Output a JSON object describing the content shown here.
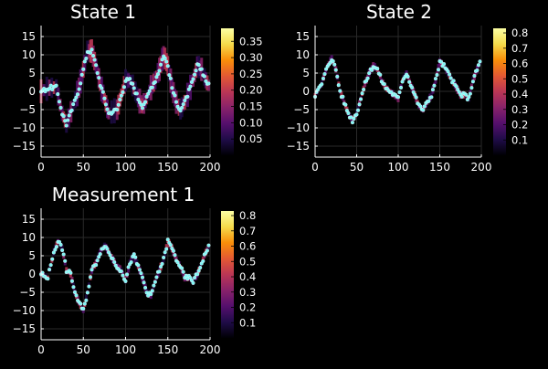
{
  "chart_data": [
    {
      "type": "heatmap",
      "title": "State 1",
      "xlim": [
        0,
        200
      ],
      "ylim": [
        -18,
        18
      ],
      "x_ticks": [
        "0",
        "50",
        "100",
        "150",
        "200"
      ],
      "y_ticks": [
        "-15",
        "-10",
        "-5",
        "0",
        "5",
        "10",
        "15"
      ],
      "grid": true,
      "colorbar": {
        "range": [
          0,
          0.39
        ],
        "ticks": [
          "0.05",
          "0.10",
          "0.15",
          "0.20",
          "0.25",
          "0.30",
          "0.35"
        ]
      },
      "series": [
        {
          "marker": "cyan-dots",
          "x": [
            0,
            10,
            18,
            25,
            30,
            38,
            45,
            50,
            55,
            60,
            65,
            70,
            75,
            80,
            90,
            95,
            100,
            105,
            110,
            115,
            120,
            125,
            130,
            135,
            140,
            145,
            150,
            155,
            160,
            165,
            170,
            180,
            185,
            190,
            195,
            200
          ],
          "y": [
            0,
            1,
            1,
            -6,
            -9,
            -4,
            1,
            6,
            11,
            11,
            7,
            2,
            -2,
            -6,
            -5,
            -1,
            3,
            3,
            1,
            -2,
            -4,
            -2,
            1,
            3,
            6,
            10,
            7,
            1,
            -3,
            -5,
            -3,
            3,
            7,
            6,
            3,
            1
          ]
        }
      ]
    },
    {
      "type": "heatmap",
      "title": "State 2",
      "xlim": [
        0,
        200
      ],
      "ylim": [
        -18,
        18
      ],
      "x_ticks": [
        "0",
        "50",
        "100",
        "150",
        "200"
      ],
      "y_ticks": [
        "-15",
        "-10",
        "-5",
        "0",
        "5",
        "10",
        "15"
      ],
      "grid": true,
      "colorbar": {
        "range": [
          0,
          0.83
        ],
        "ticks": [
          "0.1",
          "0.2",
          "0.3",
          "0.4",
          "0.5",
          "0.6",
          "0.7",
          "0.8"
        ]
      },
      "series": [
        {
          "marker": "cyan-dots",
          "x": [
            0,
            8,
            15,
            20,
            25,
            30,
            35,
            40,
            45,
            50,
            55,
            60,
            65,
            70,
            75,
            80,
            85,
            90,
            95,
            100,
            105,
            110,
            115,
            120,
            125,
            130,
            135,
            140,
            145,
            150,
            155,
            160,
            165,
            170,
            175,
            180,
            185,
            190,
            195,
            200
          ],
          "y": [
            -1,
            2,
            7,
            9,
            6,
            0,
            -3,
            -6,
            -8,
            -6,
            -2,
            2,
            5,
            7,
            6,
            3,
            1,
            0,
            -1,
            -2,
            3,
            5,
            2,
            -1,
            -4,
            -5,
            -3,
            -1,
            3,
            8,
            7,
            5,
            3,
            1,
            -1,
            -1,
            -2,
            3,
            6,
            9
          ]
        }
      ]
    },
    {
      "type": "heatmap",
      "title": "Measurement 1",
      "xlim": [
        0,
        200
      ],
      "ylim": [
        -18,
        18
      ],
      "x_ticks": [
        "0",
        "50",
        "100",
        "150",
        "200"
      ],
      "y_ticks": [
        "-15",
        "-10",
        "-5",
        "0",
        "5",
        "10",
        "15"
      ],
      "grid": true,
      "colorbar": {
        "range": [
          0,
          0.83
        ],
        "ticks": [
          "0.1",
          "0.2",
          "0.3",
          "0.4",
          "0.5",
          "0.6",
          "0.7",
          "0.8"
        ]
      },
      "series": [
        {
          "marker": "cyan-dots",
          "x": [
            0,
            8,
            15,
            20,
            25,
            30,
            35,
            40,
            45,
            50,
            55,
            60,
            65,
            70,
            75,
            80,
            85,
            90,
            95,
            100,
            105,
            110,
            115,
            120,
            125,
            130,
            135,
            140,
            145,
            150,
            155,
            160,
            165,
            170,
            175,
            180,
            185,
            190,
            195,
            200
          ],
          "y": [
            0,
            -1,
            6,
            9,
            7,
            1,
            0,
            -5,
            -8,
            -10,
            -5,
            1,
            3,
            6,
            8,
            6,
            4,
            2,
            1,
            -2,
            3,
            5,
            2,
            -1,
            -5,
            -6,
            -2,
            1,
            4,
            9,
            7,
            4,
            2,
            -1,
            -1,
            -2,
            0,
            3,
            6,
            8
          ]
        }
      ]
    }
  ],
  "colors": {
    "background": "#000000",
    "marker": "#7ff5f5",
    "grid": "#2a2a2a",
    "colormap_inferno": [
      "#000004",
      "#1f0c48",
      "#550f6d",
      "#88226a",
      "#ba3655",
      "#e35933",
      "#f98e09",
      "#f5db4b",
      "#fcffa4"
    ]
  }
}
